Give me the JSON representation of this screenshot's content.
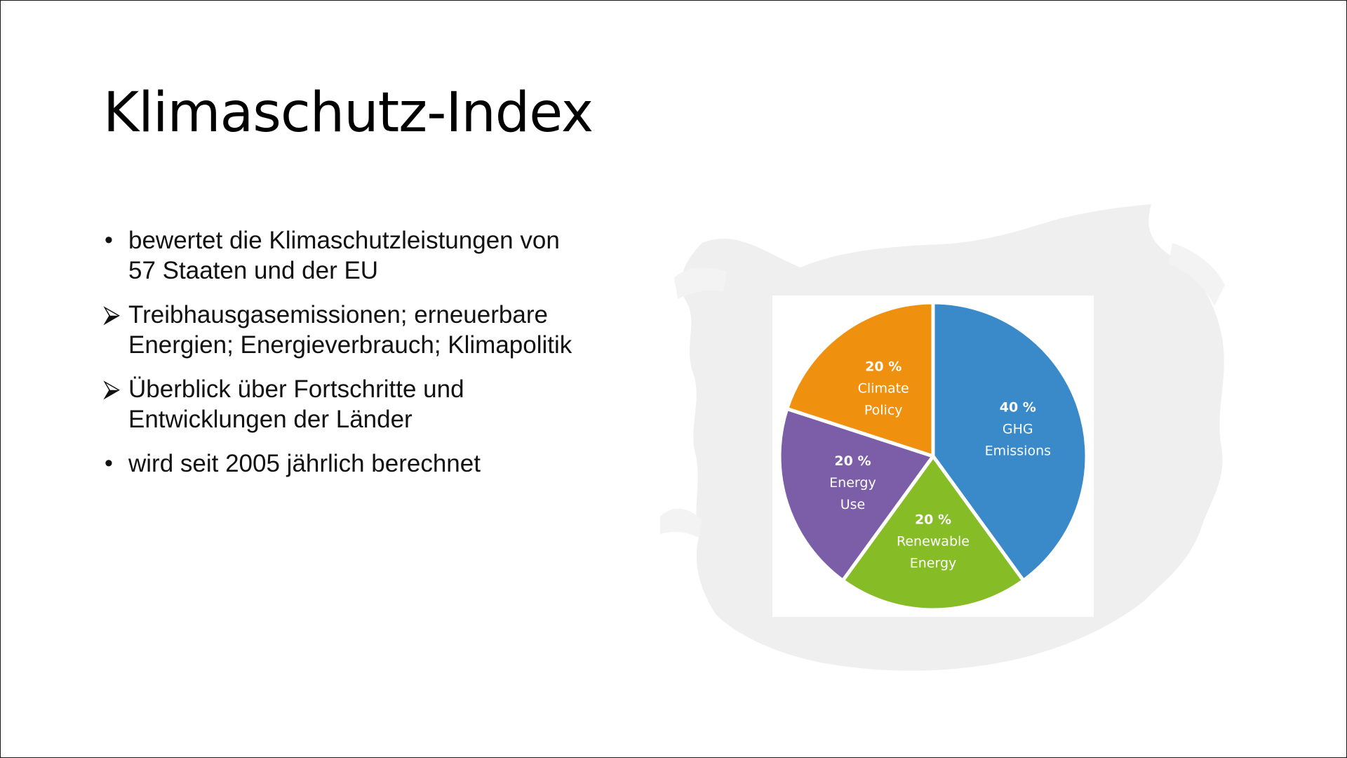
{
  "slide": {
    "title": "Klimaschutz-Index",
    "bullets": [
      {
        "marker": "•",
        "marker_type": "dot",
        "lines": [
          "bewertet die Klimaschutzleistungen von",
          "57 Staaten und der EU"
        ]
      },
      {
        "marker": "⮚",
        "marker_type": "arrow",
        "lines": [
          "Treibhausgasemissionen; erneuerbare",
          "Energien; Energieverbrauch; Klimapolitik"
        ]
      },
      {
        "marker": "⮚",
        "marker_type": "arrow",
        "lines": [
          "Überblick über Fortschritte und",
          "Entwicklungen der Länder"
        ]
      },
      {
        "marker": "•",
        "marker_type": "dot",
        "lines": [
          "wird seit 2005 jährlich berechnet"
        ]
      }
    ]
  },
  "chart_data": {
    "type": "pie",
    "title": "",
    "slices": [
      {
        "pct_label": "40 %",
        "label_lines": [
          "GHG",
          "Emissions"
        ],
        "value": 40,
        "color": "#3a8ac9"
      },
      {
        "pct_label": "20 %",
        "label_lines": [
          "Renewable",
          "Energy"
        ],
        "value": 20,
        "color": "#86bc25"
      },
      {
        "pct_label": "20 %",
        "label_lines": [
          "Energy",
          "Use"
        ],
        "value": 20,
        "color": "#7b5ea7"
      },
      {
        "pct_label": "20 %",
        "label_lines": [
          "Climate",
          "Policy"
        ],
        "value": 20,
        "color": "#f0900f"
      }
    ]
  }
}
